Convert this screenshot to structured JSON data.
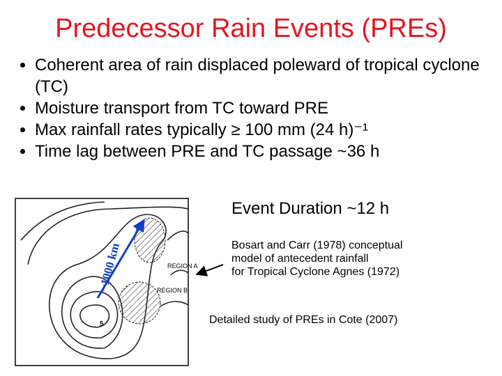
{
  "header": {
    "title": "Predecessor Rain Events (PREs)"
  },
  "bullets": [
    "Coherent area of rain displaced poleward of tropical cyclone (TC)",
    "Moisture transport from TC toward PRE",
    "Max rainfall rates typically ≥ 100 mm (24 h)⁻¹",
    "Time lag between PRE and TC passage ~36 h"
  ],
  "event_duration": "Event Duration ~12 h",
  "figure": {
    "distance_label": "~1000 km",
    "region_a": "REGION A",
    "region_b": "REGION B",
    "center_label": "5"
  },
  "caption": {
    "lines": [
      "Bosart and Carr (1978) conceptual",
      "model of antecedent rainfall",
      "for Tropical Cyclone Agnes (1972)"
    ]
  },
  "reference": "Detailed study of PREs in Cote (2007)"
}
